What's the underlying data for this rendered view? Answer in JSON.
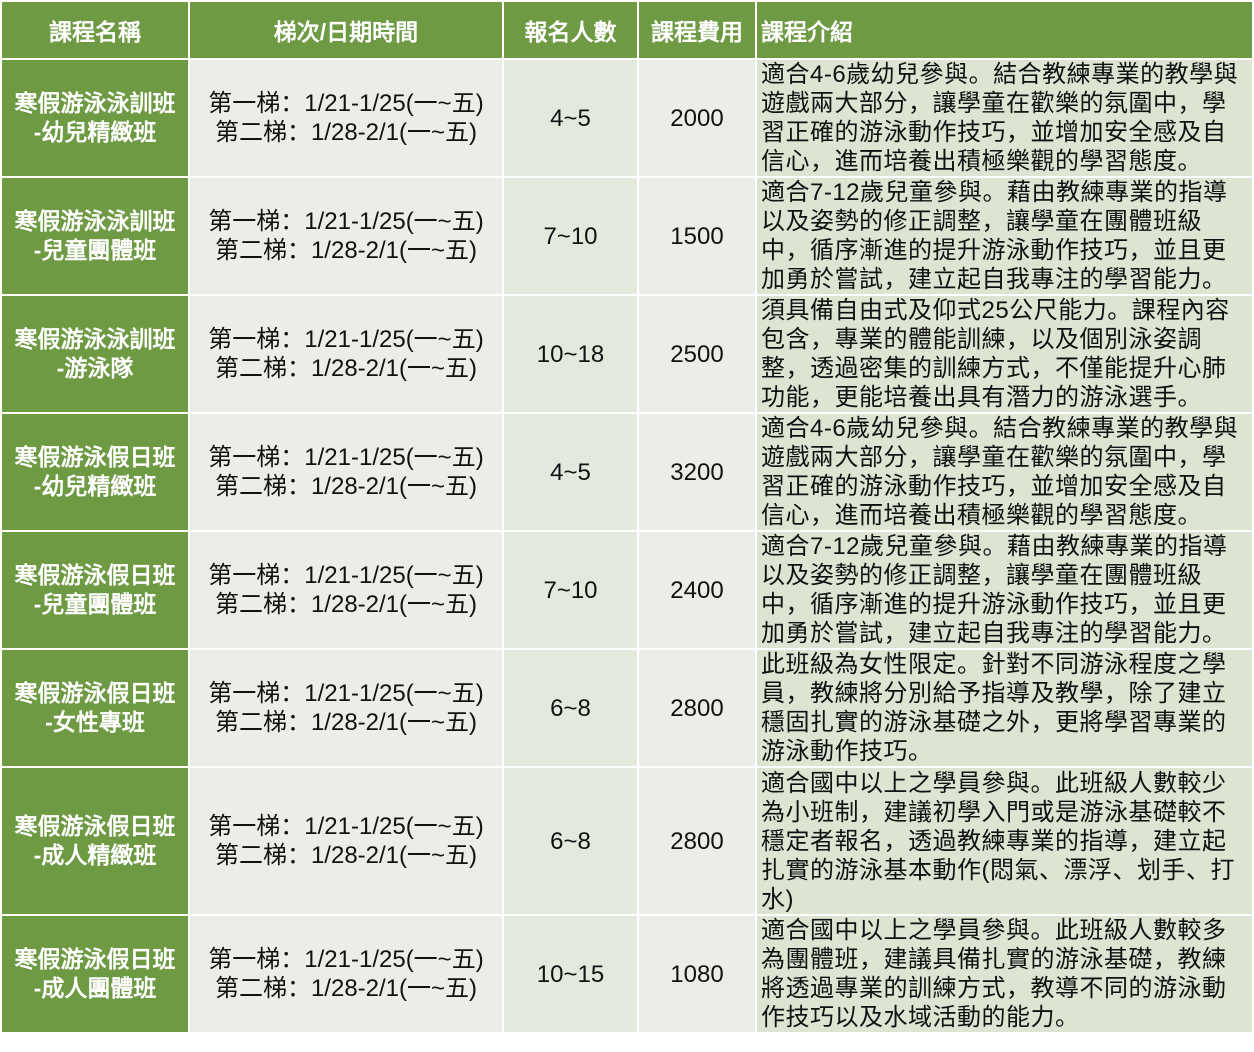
{
  "table": {
    "header": [
      "課程名稱",
      "梯次/日期時間",
      "報名人數",
      "課程費用",
      "課程介紹"
    ],
    "rows": [
      [
        [
          "寒假游泳泳訓班",
          "-幼兒精緻班"
        ],
        [
          "第一梯：1/21-1/25(一~五)",
          "第二梯：1/28-2/1(一~五)"
        ],
        "4~5",
        "2000",
        "適合4-6歲幼兒參與。結合教練專業的教學與遊戲兩大部分，讓學童在歡樂的氛圍中，學習正確的游泳動作技巧，並增加安全感及自信心，進而培養出積極樂觀的學習態度。"
      ],
      [
        [
          "寒假游泳泳訓班",
          "-兒童團體班"
        ],
        [
          "第一梯：1/21-1/25(一~五)",
          "第二梯：1/28-2/1(一~五)"
        ],
        "7~10",
        "1500",
        "適合7-12歲兒童參與。藉由教練專業的指導以及姿勢的修正調整，讓學童在團體班級中，循序漸進的提升游泳動作技巧，並且更加勇於嘗試，建立起自我專注的學習能力。"
      ],
      [
        [
          "寒假游泳泳訓班",
          "-游泳隊"
        ],
        [
          "第一梯：1/21-1/25(一~五)",
          "第二梯：1/28-2/1(一~五)"
        ],
        "10~18",
        "2500",
        "須具備自由式及仰式25公尺能力。課程內容包含，專業的體能訓練，以及個別泳姿調整，透過密集的訓練方式，不僅能提升心肺功能，更能培養出具有潛力的游泳選手。"
      ],
      [
        [
          "寒假游泳假日班",
          "-幼兒精緻班"
        ],
        [
          "第一梯：1/21-1/25(一~五)",
          "第二梯：1/28-2/1(一~五)"
        ],
        "4~5",
        "3200",
        "適合4-6歲幼兒參與。結合教練專業的教學與遊戲兩大部分，讓學童在歡樂的氛圍中，學習正確的游泳動作技巧，並增加安全感及自信心，進而培養出積極樂觀的學習態度。"
      ],
      [
        [
          "寒假游泳假日班",
          "-兒童團體班"
        ],
        [
          "第一梯：1/21-1/25(一~五)",
          "第二梯：1/28-2/1(一~五)"
        ],
        "7~10",
        "2400",
        "適合7-12歲兒童參與。藉由教練專業的指導以及姿勢的修正調整，讓學童在團體班級中，循序漸進的提升游泳動作技巧，並且更加勇於嘗試，建立起自我專注的學習能力。"
      ],
      [
        [
          "寒假游泳假日班",
          "-女性專班"
        ],
        [
          "第一梯：1/21-1/25(一~五)",
          "第二梯：1/28-2/1(一~五)"
        ],
        "6~8",
        "2800",
        "此班級為女性限定。針對不同游泳程度之學員，教練將分別給予指導及教學，除了建立穩固扎實的游泳基礎之外，更將學習專業的游泳動作技巧。"
      ],
      [
        [
          "寒假游泳假日班",
          "-成人精緻班"
        ],
        [
          "第一梯：1/21-1/25(一~五)",
          "第二梯：1/28-2/1(一~五)"
        ],
        "6~8",
        "2800",
        "適合國中以上之學員參與。此班級人數較少為小班制，建議初學入門或是游泳基礎較不穩定者報名，透過教練專業的指導，建立起扎實的游泳基本動作(悶氣、漂浮、划手、打水)"
      ],
      [
        [
          "寒假游泳假日班",
          "-成人團體班"
        ],
        [
          "第一梯：1/21-1/25(一~五)",
          "第二梯：1/28-2/1(一~五)"
        ],
        "10~15",
        "1080",
        "適合國中以上之學員參與。此班級人數較多為團體班，建議具備扎實的游泳基礎，教練將透過專業的訓練方式，教導不同的游泳動作技巧以及水域活動的能力。"
      ]
    ]
  }
}
